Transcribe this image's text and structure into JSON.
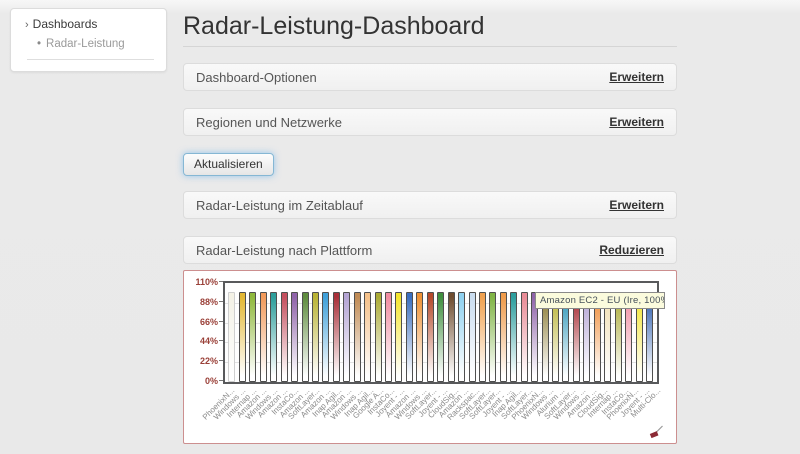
{
  "sidebar": {
    "header": {
      "chevron": "›",
      "label": "Dashboards"
    },
    "items": [
      {
        "bullet": "•",
        "label": "Radar-Leistung"
      }
    ]
  },
  "header": {
    "title": "Radar-Leistung-Dashboard"
  },
  "panels": [
    {
      "title": "Dashboard-Optionen",
      "action": "Erweitern"
    },
    {
      "title": "Regionen und Netzwerke",
      "action": "Erweitern"
    },
    {
      "title": "Radar-Leistung im Zeitablauf",
      "action": "Erweitern"
    },
    {
      "title": "Radar-Leistung nach Plattform",
      "action": "Reduzieren"
    }
  ],
  "refresh_button": {
    "label": "Aktualisieren"
  },
  "chart_data": {
    "type": "bar",
    "title": "Radar-Leistung nach Plattform",
    "xlabel": "",
    "ylabel": "",
    "ylim": [
      0,
      110
    ],
    "yticks": [
      "110%",
      "88%",
      "66%",
      "44%",
      "22%",
      "0%"
    ],
    "grid": true,
    "legend": "none",
    "tooltip_text": "Amazon EC2 - EU (Ire, 100%",
    "categories": [
      "PhoenixN...",
      "Windows ...",
      "Internap ...",
      "Amazon ...",
      "Windows ...",
      "Amazon ...",
      "InstaCo...",
      "Amazon ...",
      "SoftLayer...",
      "Amazon ...",
      "Inap Agil...",
      "Amazon ...",
      "Windows ...",
      "Inap Agil...",
      "Google A...",
      "InstaCo...",
      "Joyent - ...",
      "Amazon ...",
      "Windows ...",
      "SoftLayer...",
      "Joyent - ...",
      "CloudSig...",
      "Amazon ...",
      "Rackspac...",
      "SoftLayer...",
      "SoftLayer...",
      "Joyent - ...",
      "Inap Agil...",
      "SoftLayer...",
      "PhoenixN...",
      "Windows ...",
      "Alurium ...",
      "SoftLayer...",
      "Windows ...",
      "Amazon ...",
      "CloudSig...",
      "Internap ...",
      "InstaCo...",
      "PhoenixN...",
      "Joyent - ...",
      "Multi-Clo..."
    ],
    "values": [
      100,
      100,
      100,
      100,
      100,
      100,
      100,
      100,
      100,
      100,
      100,
      100,
      100,
      100,
      100,
      100,
      100,
      100,
      100,
      100,
      100,
      100,
      100,
      100,
      100,
      100,
      100,
      100,
      100,
      100,
      100,
      100,
      100,
      100,
      100,
      100,
      100,
      100,
      100,
      100,
      100
    ],
    "bar_colors": [
      "#f4f2e6",
      "#e2b733",
      "#8fb83c",
      "#f19a5b",
      "#2d9e9b",
      "#c4505f",
      "#8f63a9",
      "#5f8c3e",
      "#b9b335",
      "#3fa0d9",
      "#a93039",
      "#b4a4d4",
      "#c08b55",
      "#f5c18a",
      "#abab36",
      "#f08da2",
      "#f3e52f",
      "#3a6fbf",
      "#ef9235",
      "#b5492b",
      "#3f8f3f",
      "#6f4d30",
      "#8fd1f0",
      "#caddf0",
      "#f0a14f",
      "#80b445",
      "#ef9b4b",
      "#2d9e9e",
      "#e88c97",
      "#8f63a9",
      "#8a7a33",
      "#b9b335",
      "#2d96b8",
      "#a5272f",
      "#b4a4d4",
      "#ef8e3c",
      "#f2dfb2",
      "#abab36",
      "#f08da2",
      "#f3e52f",
      "#2f5fae"
    ]
  }
}
